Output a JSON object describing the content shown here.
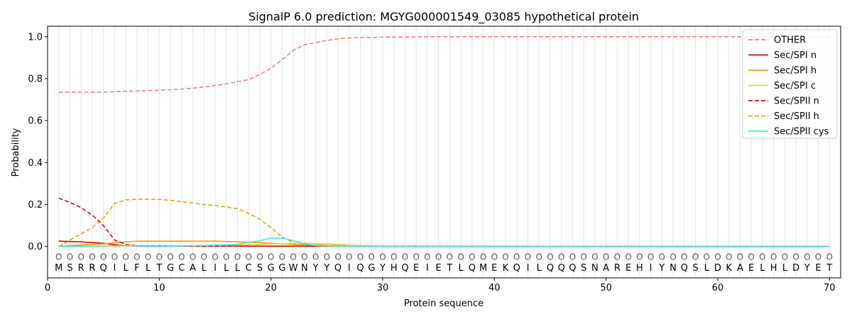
{
  "chart_data": {
    "type": "line",
    "title": "SignalP 6.0 prediction: MGYG000001549_03085 hypothetical protein",
    "xlabel": "Protein sequence",
    "ylabel": "Probability",
    "xlim": [
      0,
      71
    ],
    "ylim": [
      -0.15,
      1.05
    ],
    "xticks": [
      0,
      10,
      20,
      30,
      40,
      50,
      60,
      70
    ],
    "yticks": [
      "0.0",
      "0.2",
      "0.4",
      "0.6",
      "0.8",
      "1.0"
    ],
    "grid": "vertical lines at each residue",
    "legend_position": "top-right",
    "sequence": [
      "M",
      "S",
      "R",
      "R",
      "Q",
      "I",
      "L",
      "F",
      "L",
      "T",
      "G",
      "C",
      "A",
      "L",
      "I",
      "L",
      "L",
      "C",
      "S",
      "G",
      "G",
      "W",
      "N",
      "Y",
      "Y",
      "Q",
      "I",
      "Q",
      "G",
      "Y",
      "H",
      "Q",
      "E",
      "I",
      "E",
      "T",
      "L",
      "Q",
      "M",
      "E",
      "K",
      "Q",
      "I",
      "L",
      "Q",
      "Q",
      "Q",
      "S",
      "N",
      "A",
      "R",
      "E",
      "H",
      "I",
      "Y",
      "N",
      "Q",
      "S",
      "L",
      "D",
      "K",
      "A",
      "E",
      "L",
      "H",
      "L",
      "D",
      "Y",
      "E",
      "T"
    ],
    "region_label": "O",
    "series": [
      {
        "name": "OTHER",
        "color": "#f08080",
        "dash": "dashed",
        "keypoints": [
          [
            1,
            0.735
          ],
          [
            5,
            0.736
          ],
          [
            10,
            0.745
          ],
          [
            12,
            0.75
          ],
          [
            14,
            0.76
          ],
          [
            16,
            0.775
          ],
          [
            17,
            0.785
          ],
          [
            18,
            0.795
          ],
          [
            19,
            0.82
          ],
          [
            20,
            0.85
          ],
          [
            21,
            0.89
          ],
          [
            22,
            0.935
          ],
          [
            23,
            0.962
          ],
          [
            24,
            0.972
          ],
          [
            25,
            0.982
          ],
          [
            26,
            0.99
          ],
          [
            27,
            0.994
          ],
          [
            28,
            0.996
          ],
          [
            30,
            0.998
          ],
          [
            35,
            1.0
          ],
          [
            70,
            1.0
          ]
        ]
      },
      {
        "name": "Sec/SPI n",
        "color": "#e00000",
        "dash": "solid",
        "keypoints": [
          [
            1,
            0.025
          ],
          [
            3,
            0.022
          ],
          [
            5,
            0.015
          ],
          [
            6,
            0.008
          ],
          [
            7,
            0.004
          ],
          [
            9,
            0.002
          ],
          [
            70,
            0.0
          ]
        ]
      },
      {
        "name": "Sec/SPI h",
        "color": "#f0a000",
        "dash": "solid",
        "keypoints": [
          [
            1,
            0.002
          ],
          [
            5,
            0.012
          ],
          [
            7,
            0.022
          ],
          [
            8,
            0.025
          ],
          [
            15,
            0.025
          ],
          [
            18,
            0.02
          ],
          [
            20,
            0.015
          ],
          [
            22,
            0.01
          ],
          [
            25,
            0.005
          ],
          [
            30,
            0.001
          ],
          [
            70,
            0.0
          ]
        ]
      },
      {
        "name": "Sec/SPI c",
        "color": "#f0d020",
        "dash": "solid",
        "keypoints": [
          [
            1,
            0.0
          ],
          [
            15,
            0.003
          ],
          [
            18,
            0.008
          ],
          [
            20,
            0.012
          ],
          [
            23,
            0.015
          ],
          [
            25,
            0.012
          ],
          [
            27,
            0.006
          ],
          [
            30,
            0.002
          ],
          [
            70,
            0.0
          ]
        ]
      },
      {
        "name": "Sec/SPII n",
        "color": "#d01010",
        "dash": "dashed",
        "keypoints": [
          [
            1,
            0.23
          ],
          [
            2,
            0.21
          ],
          [
            3,
            0.185
          ],
          [
            4,
            0.15
          ],
          [
            5,
            0.1
          ],
          [
            6,
            0.03
          ],
          [
            7,
            0.01
          ],
          [
            8,
            0.003
          ],
          [
            12,
            0.001
          ],
          [
            70,
            0.0
          ]
        ]
      },
      {
        "name": "Sec/SPII h",
        "color": "#f0a000",
        "dash": "dashed",
        "keypoints": [
          [
            1,
            0.0
          ],
          [
            2,
            0.03
          ],
          [
            3,
            0.06
          ],
          [
            4,
            0.09
          ],
          [
            5,
            0.135
          ],
          [
            6,
            0.205
          ],
          [
            7,
            0.222
          ],
          [
            8,
            0.225
          ],
          [
            9,
            0.225
          ],
          [
            10,
            0.224
          ],
          [
            11,
            0.22
          ],
          [
            12,
            0.213
          ],
          [
            13,
            0.207
          ],
          [
            14,
            0.2
          ],
          [
            15,
            0.195
          ],
          [
            16,
            0.188
          ],
          [
            17,
            0.18
          ],
          [
            18,
            0.158
          ],
          [
            19,
            0.13
          ],
          [
            20,
            0.09
          ],
          [
            21,
            0.045
          ],
          [
            22,
            0.018
          ],
          [
            23,
            0.006
          ],
          [
            24,
            0.002
          ],
          [
            70,
            0.0
          ]
        ]
      },
      {
        "name": "Sec/SPII cys",
        "color": "#40e8e8",
        "dash": "solid",
        "keypoints": [
          [
            1,
            0.0
          ],
          [
            6,
            0.003
          ],
          [
            7,
            0.006
          ],
          [
            8,
            0.002
          ],
          [
            10,
            0.0
          ],
          [
            15,
            0.006
          ],
          [
            17,
            0.01
          ],
          [
            18,
            0.02
          ],
          [
            19,
            0.027
          ],
          [
            20,
            0.04
          ],
          [
            21,
            0.04
          ],
          [
            22,
            0.028
          ],
          [
            23,
            0.012
          ],
          [
            24,
            0.004
          ],
          [
            26,
            0.001
          ],
          [
            70,
            0.0
          ]
        ]
      }
    ]
  }
}
